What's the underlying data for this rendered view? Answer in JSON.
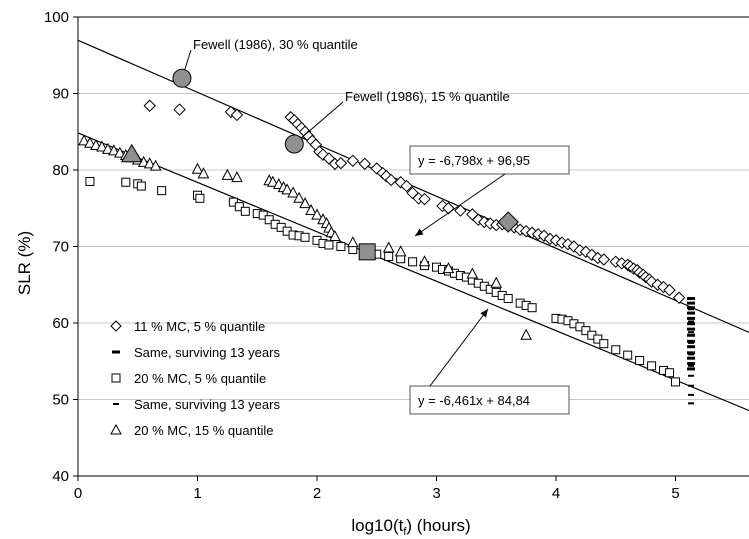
{
  "chart_data": {
    "type": "scatter",
    "xlabel": "log10(t",
    "xlabel_sub": "f",
    "xlabel_tail": ") (hours)",
    "ylabel": "SLR (%)",
    "xlim": [
      0,
      5.6
    ],
    "ylim": [
      40,
      100
    ],
    "xticks": [
      0,
      1,
      2,
      3,
      4,
      5
    ],
    "yticks": [
      40,
      50,
      60,
      70,
      80,
      90,
      100
    ],
    "grid": "horizontal",
    "legend_position": "bottom-left",
    "legend": [
      {
        "label": "11 % MC, 5 % quantile",
        "marker": "diamond"
      },
      {
        "label": "Same, surviving 13 years",
        "marker": "thick-dash"
      },
      {
        "label": "20 % MC, 5 % quantile",
        "marker": "square"
      },
      {
        "label": "Same, surviving 13 years",
        "marker": "thin-dash"
      },
      {
        "label": "20 % MC, 15 % quantile",
        "marker": "triangle"
      }
    ],
    "lines": [
      {
        "equation": "y = -6,798x + 96,95",
        "slope": -6.798,
        "intercept": 96.95
      },
      {
        "equation": "y = -6,461x + 84,84",
        "slope": -6.461,
        "intercept": 84.84
      }
    ],
    "annotations": [
      {
        "text": "Fewell (1986), 30 % quantile",
        "x": 0.87,
        "y": 92
      },
      {
        "text": "Fewell (1986), 15 % quantile",
        "x": 1.81,
        "y": 83.4
      }
    ],
    "series": [
      {
        "marker": "diamond",
        "x": [
          0.6,
          0.85,
          1.28,
          1.33,
          1.78,
          1.81,
          1.84,
          1.87,
          1.9,
          1.93,
          1.96,
          1.99,
          2.02,
          2.05,
          2.1,
          2.15,
          2.2,
          2.3,
          2.4,
          2.5,
          2.55,
          2.58,
          2.62,
          2.7,
          2.75,
          2.8,
          2.85,
          2.9,
          3.05,
          3.1,
          3.2,
          3.3,
          3.35,
          3.4,
          3.45,
          3.5,
          3.55,
          3.65,
          3.7,
          3.75,
          3.8,
          3.85,
          3.9,
          3.95,
          4.0,
          4.05,
          4.1,
          4.15,
          4.2,
          4.25,
          4.3,
          4.35,
          4.4,
          4.5,
          4.55,
          4.6,
          4.62,
          4.65,
          4.68,
          4.7,
          4.73,
          4.75,
          4.78,
          4.8,
          4.85,
          4.9,
          4.95,
          5.03
        ],
        "y": [
          88.4,
          87.9,
          87.6,
          87.2,
          86.9,
          86.5,
          86.0,
          85.5,
          85.0,
          84.4,
          83.8,
          83.3,
          82.4,
          82.0,
          81.5,
          80.8,
          80.9,
          81.2,
          80.8,
          80.2,
          79.6,
          79.2,
          78.7,
          78.4,
          77.9,
          77.0,
          76.3,
          76.2,
          75.3,
          75.0,
          74.7,
          74.2,
          73.5,
          73.2,
          73.0,
          72.8,
          72.9,
          72.5,
          72.2,
          72.0,
          71.8,
          71.6,
          71.4,
          71.0,
          70.8,
          70.5,
          70.3,
          70.0,
          69.5,
          69.3,
          68.9,
          68.5,
          68.3,
          68.0,
          67.8,
          67.6,
          67.4,
          67.1,
          66.9,
          66.6,
          66.3,
          66.0,
          65.7,
          65.4,
          65.0,
          64.7,
          64.3,
          63.3
        ]
      },
      {
        "marker": "square",
        "x": [
          0.1,
          0.4,
          0.5,
          0.53,
          0.7,
          1.0,
          1.02,
          1.3,
          1.35,
          1.4,
          1.5,
          1.55,
          1.6,
          1.65,
          1.7,
          1.75,
          1.8,
          1.85,
          1.9,
          2.0,
          2.05,
          2.1,
          2.2,
          2.3,
          2.4,
          2.5,
          2.6,
          2.7,
          2.8,
          2.9,
          3.0,
          3.05,
          3.1,
          3.15,
          3.2,
          3.25,
          3.3,
          3.35,
          3.4,
          3.45,
          3.5,
          3.55,
          3.6,
          3.7,
          3.75,
          3.8,
          4.0,
          4.05,
          4.1,
          4.15,
          4.2,
          4.25,
          4.3,
          4.35,
          4.4,
          4.5,
          4.6,
          4.7,
          4.8,
          4.9,
          4.95,
          5.0
        ],
        "y": [
          78.5,
          78.4,
          78.2,
          77.9,
          77.3,
          76.7,
          76.3,
          75.8,
          75.2,
          74.6,
          74.3,
          74.1,
          73.5,
          72.9,
          72.5,
          72.0,
          71.5,
          71.4,
          71.2,
          70.8,
          70.4,
          70.2,
          70.0,
          69.6,
          69.1,
          69.0,
          68.7,
          68.4,
          68.0,
          67.5,
          67.3,
          67.0,
          66.8,
          66.5,
          66.2,
          66.0,
          65.6,
          65.2,
          64.8,
          64.4,
          64.0,
          63.6,
          63.2,
          62.6,
          62.3,
          62.0,
          60.6,
          60.5,
          60.3,
          59.9,
          59.5,
          59.0,
          58.4,
          57.9,
          57.3,
          56.5,
          55.8,
          55.1,
          54.4,
          53.8,
          53.5,
          52.3
        ]
      },
      {
        "marker": "triangle",
        "x": [
          0.05,
          0.1,
          0.15,
          0.2,
          0.25,
          0.3,
          0.35,
          0.4,
          0.45,
          0.5,
          0.55,
          0.6,
          0.65,
          1.0,
          1.05,
          1.25,
          1.33,
          1.6,
          1.63,
          1.68,
          1.72,
          1.75,
          1.8,
          1.85,
          1.9,
          1.95,
          2.0,
          2.05,
          2.08,
          2.1,
          2.12,
          2.15,
          2.3,
          2.6,
          2.7,
          2.9,
          3.1,
          3.3,
          3.5,
          3.75
        ],
        "y": [
          83.8,
          83.5,
          83.2,
          83.0,
          82.7,
          82.5,
          82.2,
          81.9,
          81.6,
          81.3,
          81.0,
          80.8,
          80.5,
          80.1,
          79.5,
          79.3,
          79.0,
          78.6,
          78.4,
          78.1,
          77.7,
          77.4,
          77.0,
          76.3,
          75.6,
          74.7,
          74.1,
          73.5,
          73.0,
          72.4,
          71.8,
          71.3,
          70.5,
          69.8,
          69.3,
          68.0,
          67.1,
          66.4,
          65.2,
          58.4
        ]
      },
      {
        "marker": "thick-dash",
        "x": 5.13,
        "y": [
          63.2,
          62.6,
          62.0,
          61.3,
          60.6,
          59.9,
          59.2,
          58.4,
          57.6,
          56.9,
          56.1,
          55.4,
          54.7,
          54.0
        ]
      },
      {
        "marker": "thin-dash",
        "x": 5.13,
        "y": [
          61.8,
          60.2,
          58.8,
          57.4,
          55.9,
          54.4,
          53.1,
          51.8,
          50.6,
          49.5
        ]
      },
      {
        "marker": "big-circle",
        "x": [
          0.87,
          1.81
        ],
        "y": [
          92.0,
          83.4
        ]
      },
      {
        "marker": "big-triangle",
        "x": [
          0.45
        ],
        "y": [
          82.0
        ]
      },
      {
        "marker": "big-square",
        "x": [
          2.42
        ],
        "y": [
          69.3
        ]
      },
      {
        "marker": "big-diamond",
        "x": [
          3.6
        ],
        "y": [
          73.2
        ]
      }
    ]
  }
}
